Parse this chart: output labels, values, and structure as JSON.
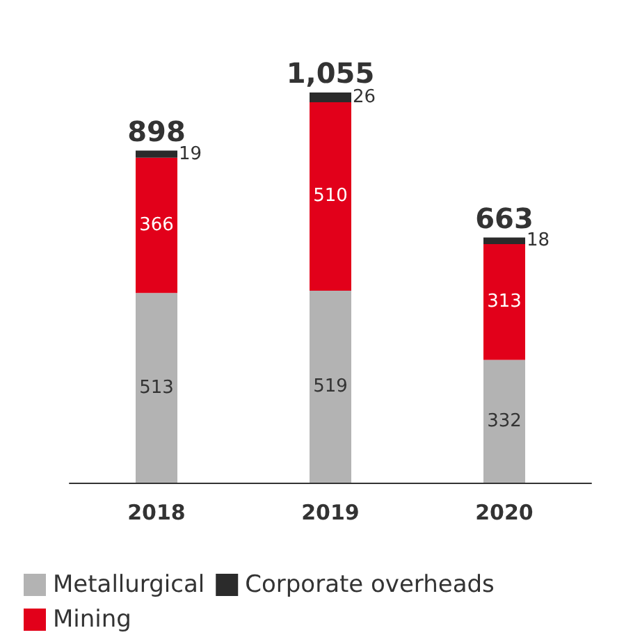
{
  "chart_data": {
    "type": "bar",
    "stacked": true,
    "categories": [
      "2018",
      "2019",
      "2020"
    ],
    "series": [
      {
        "name": "Metallurgical",
        "color": "#b3b3b3",
        "values": [
          513,
          519,
          332
        ]
      },
      {
        "name": "Mining",
        "color": "#e2001a",
        "values": [
          366,
          510,
          313
        ]
      },
      {
        "name": "Corporate overheads",
        "color": "#2b2b2b",
        "values": [
          19,
          26,
          18
        ]
      }
    ],
    "data_labels": true,
    "totals": [
      "898",
      "1,055",
      "663"
    ],
    "legend": "bottom",
    "grid": false
  }
}
